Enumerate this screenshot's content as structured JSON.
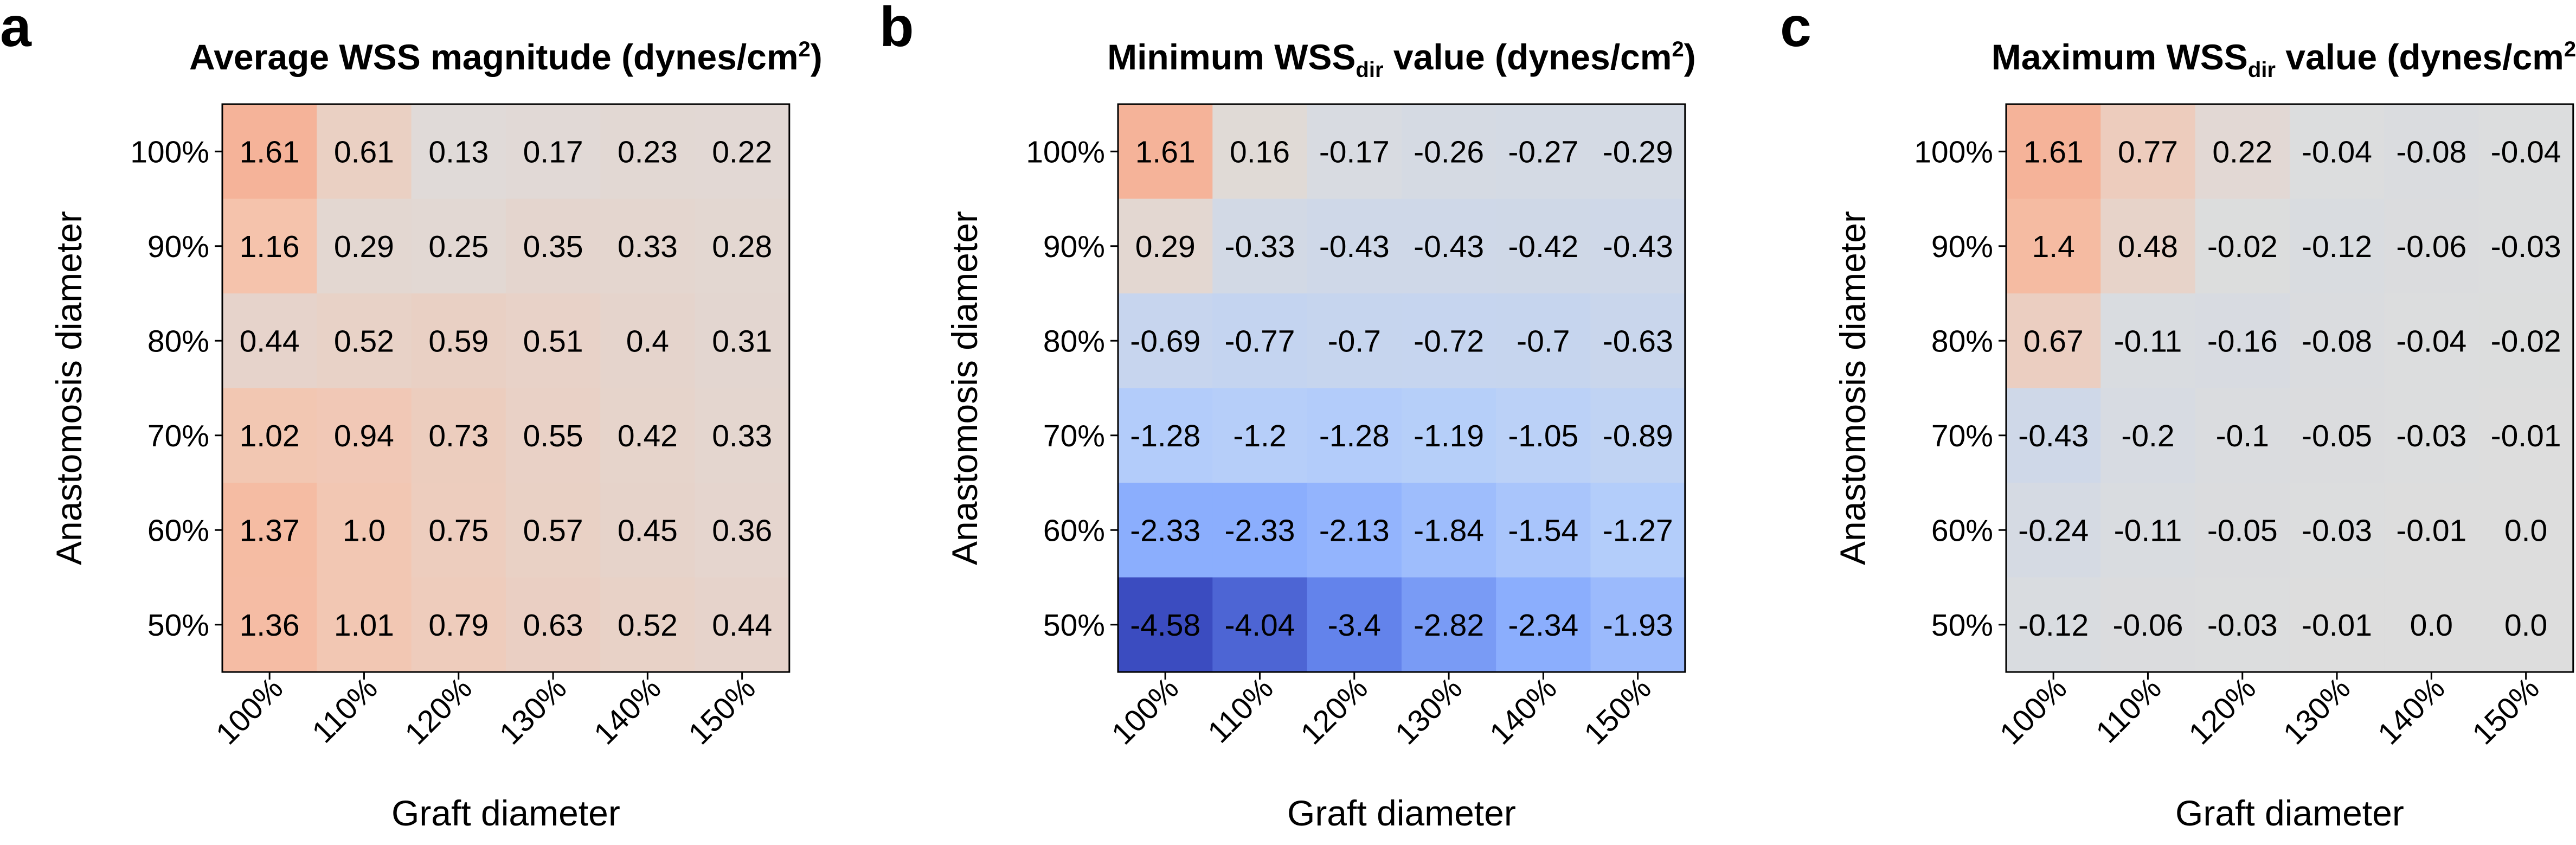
{
  "panel_letters": [
    "a",
    "b",
    "c"
  ],
  "chart_data": [
    {
      "type": "heatmap",
      "title": "Average WSS magnitude (dynes/cm",
      "title_sup": "2",
      "title_tail": ")",
      "xlabel": "Graft diameter",
      "ylabel": "Anastomosis diameter",
      "x_categories": [
        "100%",
        "110%",
        "120%",
        "130%",
        "140%",
        "150%"
      ],
      "y_categories": [
        "100%",
        "90%",
        "80%",
        "70%",
        "60%",
        "50%"
      ],
      "values": [
        [
          1.61,
          0.61,
          0.13,
          0.17,
          0.23,
          0.22
        ],
        [
          1.16,
          0.29,
          0.25,
          0.35,
          0.33,
          0.28
        ],
        [
          0.44,
          0.52,
          0.59,
          0.51,
          0.4,
          0.31
        ],
        [
          1.02,
          0.94,
          0.73,
          0.55,
          0.42,
          0.33
        ],
        [
          1.37,
          1.0,
          0.75,
          0.57,
          0.45,
          0.36
        ],
        [
          1.36,
          1.01,
          0.79,
          0.63,
          0.52,
          0.44
        ]
      ],
      "labels": [
        [
          "1.61",
          "0.61",
          "0.13",
          "0.17",
          "0.23",
          "0.22"
        ],
        [
          "1.16",
          "0.29",
          "0.25",
          "0.35",
          "0.33",
          "0.28"
        ],
        [
          "0.44",
          "0.52",
          "0.59",
          "0.51",
          "0.4",
          "0.31"
        ],
        [
          "1.02",
          "0.94",
          "0.73",
          "0.55",
          "0.42",
          "0.33"
        ],
        [
          "1.37",
          "1.0",
          "0.75",
          "0.57",
          "0.45",
          "0.36"
        ],
        [
          "1.36",
          "1.01",
          "0.79",
          "0.63",
          "0.52",
          "0.44"
        ]
      ],
      "colormap": "coolwarm",
      "color_range": [
        -4.58,
        4.58
      ]
    },
    {
      "type": "heatmap",
      "title": "Minimum WSS",
      "title_sub": "dir",
      "title_mid": " value (dynes/cm",
      "title_sup": "2",
      "title_tail": ")",
      "xlabel": "Graft diameter",
      "ylabel": "Anastomosis diameter",
      "x_categories": [
        "100%",
        "110%",
        "120%",
        "130%",
        "140%",
        "150%"
      ],
      "y_categories": [
        "100%",
        "90%",
        "80%",
        "70%",
        "60%",
        "50%"
      ],
      "values": [
        [
          1.61,
          0.16,
          -0.17,
          -0.26,
          -0.27,
          -0.29
        ],
        [
          0.29,
          -0.33,
          -0.43,
          -0.43,
          -0.42,
          -0.43
        ],
        [
          -0.69,
          -0.77,
          -0.7,
          -0.72,
          -0.7,
          -0.63
        ],
        [
          -1.28,
          -1.2,
          -1.28,
          -1.19,
          -1.05,
          -0.89
        ],
        [
          -2.33,
          -2.33,
          -2.13,
          -1.84,
          -1.54,
          -1.27
        ],
        [
          -4.58,
          -4.04,
          -3.4,
          -2.82,
          -2.34,
          -1.93
        ]
      ],
      "labels": [
        [
          "1.61",
          "0.16",
          "-0.17",
          "-0.26",
          "-0.27",
          "-0.29"
        ],
        [
          "0.29",
          "-0.33",
          "-0.43",
          "-0.43",
          "-0.42",
          "-0.43"
        ],
        [
          "-0.69",
          "-0.77",
          "-0.7",
          "-0.72",
          "-0.7",
          "-0.63"
        ],
        [
          "-1.28",
          "-1.2",
          "-1.28",
          "-1.19",
          "-1.05",
          "-0.89"
        ],
        [
          "-2.33",
          "-2.33",
          "-2.13",
          "-1.84",
          "-1.54",
          "-1.27"
        ],
        [
          "-4.58",
          "-4.04",
          "-3.4",
          "-2.82",
          "-2.34",
          "-1.93"
        ]
      ],
      "colormap": "coolwarm",
      "color_range": [
        -4.58,
        4.58
      ]
    },
    {
      "type": "heatmap",
      "title": "Maximum WSS",
      "title_sub": "dir",
      "title_mid": " value (dynes/cm",
      "title_sup": "2",
      "title_tail": ")",
      "xlabel": "Graft diameter",
      "ylabel": "Anastomosis diameter",
      "x_categories": [
        "100%",
        "110%",
        "120%",
        "130%",
        "140%",
        "150%"
      ],
      "y_categories": [
        "100%",
        "90%",
        "80%",
        "70%",
        "60%",
        "50%"
      ],
      "values": [
        [
          1.61,
          0.77,
          0.22,
          -0.04,
          -0.08,
          -0.04
        ],
        [
          1.4,
          0.48,
          -0.02,
          -0.12,
          -0.06,
          -0.03
        ],
        [
          0.67,
          -0.11,
          -0.16,
          -0.08,
          -0.04,
          -0.02
        ],
        [
          -0.43,
          -0.2,
          -0.1,
          -0.05,
          -0.03,
          -0.01
        ],
        [
          -0.24,
          -0.11,
          -0.05,
          -0.03,
          -0.01,
          0.0
        ],
        [
          -0.12,
          -0.06,
          -0.03,
          -0.01,
          0.0,
          0.0
        ]
      ],
      "labels": [
        [
          "1.61",
          "0.77",
          "0.22",
          "-0.04",
          "-0.08",
          "-0.04"
        ],
        [
          "1.4",
          "0.48",
          "-0.02",
          "-0.12",
          "-0.06",
          "-0.03"
        ],
        [
          "0.67",
          "-0.11",
          "-0.16",
          "-0.08",
          "-0.04",
          "-0.02"
        ],
        [
          "-0.43",
          "-0.2",
          "-0.1",
          "-0.05",
          "-0.03",
          "-0.01"
        ],
        [
          "-0.24",
          "-0.11",
          "-0.05",
          "-0.03",
          "-0.01",
          "0.0"
        ],
        [
          "-0.12",
          "-0.06",
          "-0.03",
          "-0.01",
          "0.0",
          "0.0"
        ]
      ],
      "colormap": "coolwarm",
      "color_range": [
        -4.58,
        4.58
      ]
    }
  ]
}
